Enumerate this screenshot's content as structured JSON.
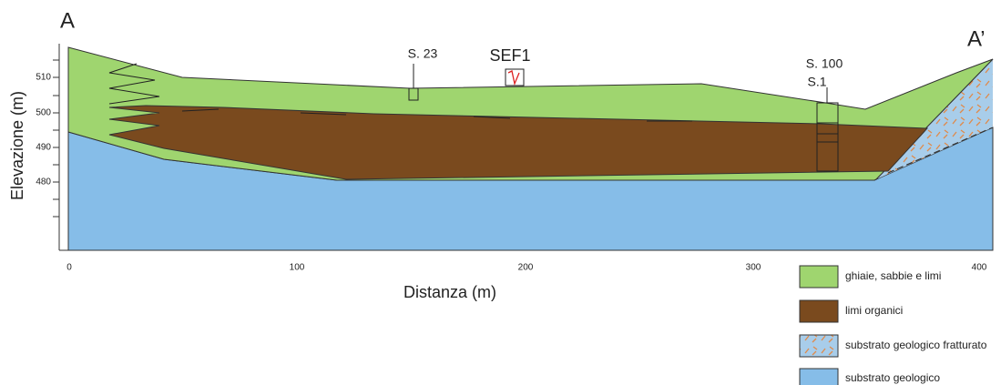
{
  "section": {
    "start_label": "A",
    "end_label": "A’",
    "boreholes": [
      "S. 23",
      "SEF1",
      "S. 100",
      "S.1"
    ],
    "y_axis": {
      "title": "Elevazione (m)",
      "ticks": [
        "510",
        "500",
        "490",
        "480"
      ]
    },
    "x_axis": {
      "title": "Distanza (m)",
      "ticks": [
        "0",
        "100",
        "200",
        "300",
        "400"
      ]
    }
  },
  "legend": [
    "ghiaie, sabbie e limi",
    "limi organici",
    "substrato geologico fratturato",
    "substrato geologico"
  ]
}
